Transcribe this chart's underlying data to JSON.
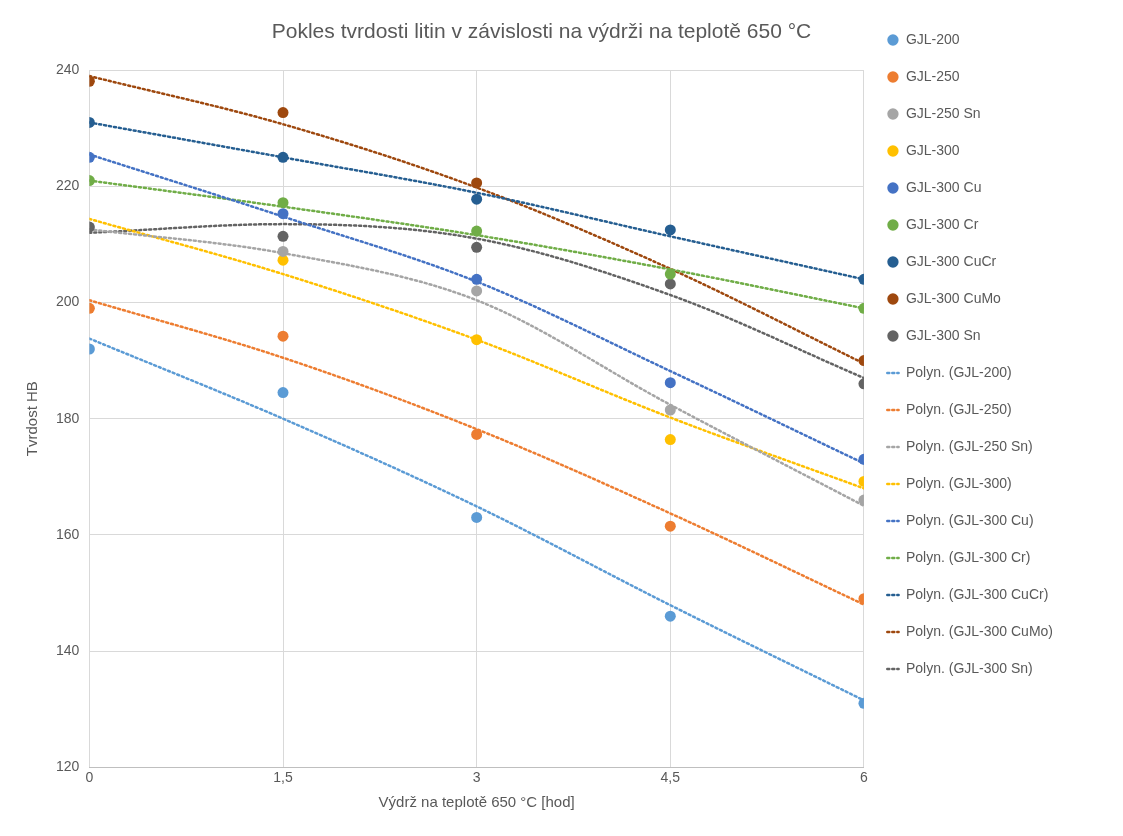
{
  "chart_data": {
    "type": "scatter",
    "title": "Pokles tvrdosti litin v závislosti na výdrži na teplotě 650 °C",
    "xlabel": "Výdrž na teplotě 650 °C [hod]",
    "ylabel": "Tvrdost HB",
    "x": [
      0,
      1.5,
      3,
      4.5,
      6
    ],
    "xlim": [
      0,
      6
    ],
    "xticks": [
      0,
      {
        "value": 1.5,
        "label": "1,5"
      },
      3,
      {
        "value": 4.5,
        "label": "4,5"
      },
      6
    ],
    "ylim": [
      120,
      240
    ],
    "yticks": [
      120,
      140,
      160,
      180,
      200,
      220,
      240
    ],
    "grid": true,
    "legend": "right",
    "series": [
      {
        "name": "GJL-200",
        "color": "#5b9bd5",
        "marker": "circle",
        "values": [
          192,
          184.5,
          163,
          146,
          131
        ]
      },
      {
        "name": "GJL-250",
        "color": "#ed7d31",
        "marker": "circle",
        "values": [
          199,
          194.2,
          177.3,
          161.5,
          149
        ]
      },
      {
        "name": "GJL-250 Sn",
        "color": "#a5a5a5",
        "marker": "circle",
        "values": [
          null,
          208.8,
          202,
          181.5,
          166
        ]
      },
      {
        "name": "GJL-300",
        "color": "#ffc000",
        "marker": "circle",
        "values": [
          null,
          207.3,
          193.6,
          176.4,
          169.2
        ]
      },
      {
        "name": "GJL-300 Cu",
        "color": "#4472c4",
        "marker": "circle",
        "values": [
          225,
          215.3,
          204,
          186.2,
          173
        ]
      },
      {
        "name": "GJL-300 Cr",
        "color": "#70ad47",
        "marker": "circle",
        "values": [
          221,
          217.2,
          212.3,
          204.9,
          199
        ]
      },
      {
        "name": "GJL-300 CuCr",
        "color": "#255e91",
        "marker": "circle",
        "values": [
          231,
          225,
          217.8,
          212.5,
          204
        ]
      },
      {
        "name": "GJL-300 CuMo",
        "color": "#9e480e",
        "marker": "circle",
        "values": [
          238.1,
          232.7,
          220.6,
          null,
          190
        ]
      },
      {
        "name": "GJL-300 Sn",
        "color": "#636363",
        "marker": "circle",
        "values": [
          213,
          211.4,
          209.5,
          203.2,
          186
        ]
      },
      {
        "name": "Polyn. (GJL-200)",
        "type": "line",
        "line_style": "dotted",
        "marker": "none",
        "color": "#5b9bd5",
        "values": [
          193.8,
          180,
          164.9,
          147.9,
          131.5
        ]
      },
      {
        "name": "Polyn. (GJL-250)",
        "type": "line",
        "line_style": "dotted",
        "marker": "none",
        "color": "#ed7d31",
        "values": [
          200.4,
          190.5,
          178.2,
          163.7,
          148
        ]
      },
      {
        "name": "Polyn. (GJL-250 Sn)",
        "type": "line",
        "line_style": "dotted",
        "marker": "none",
        "color": "#a5a5a5",
        "values": [
          212.6,
          208.5,
          200.4,
          182.4,
          165
        ]
      },
      {
        "name": "Polyn. (GJL-300)",
        "type": "line",
        "line_style": "dotted",
        "marker": "none",
        "color": "#ffc000",
        "values": [
          214.4,
          204.9,
          193.6,
          180.2,
          168
        ]
      },
      {
        "name": "Polyn. (GJL-300 Cu)",
        "type": "line",
        "line_style": "dotted",
        "marker": "none",
        "color": "#4472c4",
        "values": [
          225.5,
          214.8,
          203.6,
          188.2,
          172.3
        ]
      },
      {
        "name": "Polyn. (GJL-300 Cr)",
        "type": "line",
        "line_style": "dotted",
        "marker": "none",
        "color": "#70ad47",
        "values": [
          221,
          216.5,
          211.6,
          205.7,
          199
        ]
      },
      {
        "name": "Polyn. (GJL-300 CuCr)",
        "type": "line",
        "line_style": "dotted",
        "marker": "none",
        "color": "#255e91",
        "values": [
          231,
          225,
          218.9,
          211.4,
          204
        ]
      },
      {
        "name": "Polyn. (GJL-300 CuMo)",
        "type": "line",
        "line_style": "dotted",
        "marker": "none",
        "color": "#9e480e",
        "values": [
          239,
          230.7,
          219.8,
          205.8,
          189.5
        ]
      },
      {
        "name": "Polyn. (GJL-300 Sn)",
        "type": "line",
        "line_style": "dotted",
        "marker": "none",
        "color": "#636363",
        "values": [
          212,
          213.5,
          211,
          201.3,
          187
        ]
      }
    ]
  }
}
